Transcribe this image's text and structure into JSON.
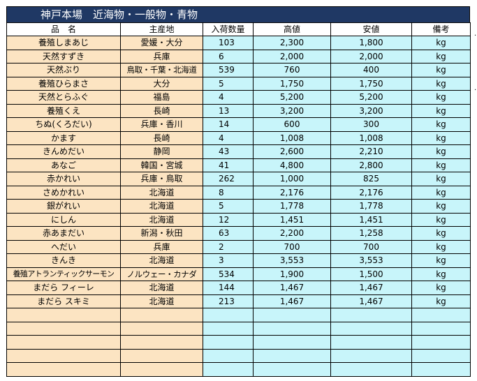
{
  "title": "神戸本場　近海物・一般物・青物",
  "headers": [
    "品　名",
    "主産地",
    "入荷数量",
    "高値",
    "安値",
    "備考"
  ],
  "rows": [
    {
      "name": "養殖しまあじ",
      "origin": "愛媛・大分",
      "qty": "103",
      "high": "2,300",
      "low": "1,800",
      "unit": "kg"
    },
    {
      "name": "天然すずき",
      "origin": "兵庫",
      "qty": "6",
      "high": "2,000",
      "low": "2,000",
      "unit": "kg"
    },
    {
      "name": "天然ぶり",
      "origin": "鳥取・千葉・北海道",
      "qty": "539",
      "high": "760",
      "low": "400",
      "unit": "kg"
    },
    {
      "name": "養殖ひらまさ",
      "origin": "大分",
      "qty": "5",
      "high": "1,750",
      "low": "1,750",
      "unit": "kg"
    },
    {
      "name": "天然とらふぐ",
      "origin": "福島",
      "qty": "4",
      "high": "5,200",
      "low": "5,200",
      "unit": "kg"
    },
    {
      "name": "養殖くえ",
      "origin": "長崎",
      "qty": "13",
      "high": "3,200",
      "low": "3,200",
      "unit": "kg"
    },
    {
      "name": "ちぬ(くろだい)",
      "origin": "兵庫・香川",
      "qty": "14",
      "high": "600",
      "low": "300",
      "unit": "kg"
    },
    {
      "name": "かます",
      "origin": "長崎",
      "qty": "4",
      "high": "1,008",
      "low": "1,008",
      "unit": "kg"
    },
    {
      "name": "きんめだい",
      "origin": "静岡",
      "qty": "43",
      "high": "2,600",
      "low": "2,210",
      "unit": "kg"
    },
    {
      "name": "あなご",
      "origin": "韓国・宮城",
      "qty": "41",
      "high": "4,800",
      "low": "2,800",
      "unit": "kg"
    },
    {
      "name": "赤かれい",
      "origin": "兵庫・鳥取",
      "qty": "262",
      "high": "1,000",
      "low": "825",
      "unit": "kg"
    },
    {
      "name": "さめかれい",
      "origin": "北海道",
      "qty": "8",
      "high": "2,176",
      "low": "2,176",
      "unit": "kg"
    },
    {
      "name": "銀がれい",
      "origin": "北海道",
      "qty": "5",
      "high": "1,778",
      "low": "1,778",
      "unit": "kg"
    },
    {
      "name": "にしん",
      "origin": "北海道",
      "qty": "12",
      "high": "1,451",
      "low": "1,451",
      "unit": "kg"
    },
    {
      "name": "赤あまだい",
      "origin": "新潟・秋田",
      "qty": "63",
      "high": "2,200",
      "low": "1,258",
      "unit": "kg"
    },
    {
      "name": "へだい",
      "origin": "兵庫",
      "qty": "2",
      "high": "700",
      "low": "700",
      "unit": "kg"
    },
    {
      "name": "きんき",
      "origin": "北海道",
      "qty": "3",
      "high": "3,553",
      "low": "3,553",
      "unit": "kg"
    },
    {
      "name": "養殖アトランティックサーモン",
      "origin": "ノルウェー・カナダ",
      "qty": "534",
      "high": "1,900",
      "low": "1,500",
      "unit": "kg"
    },
    {
      "name": "まだら フィーレ",
      "origin": "北海道",
      "qty": "144",
      "high": "1,467",
      "low": "1,467",
      "unit": "kg"
    },
    {
      "name": "まだら スキミ",
      "origin": "北海道",
      "qty": "213",
      "high": "1,467",
      "low": "1,467",
      "unit": "kg"
    }
  ],
  "empty_rows": 5,
  "colors": {
    "title_bg": "#1F3864",
    "left_cols": "#FCE4C2",
    "right_cols": "#C8F5FA"
  }
}
